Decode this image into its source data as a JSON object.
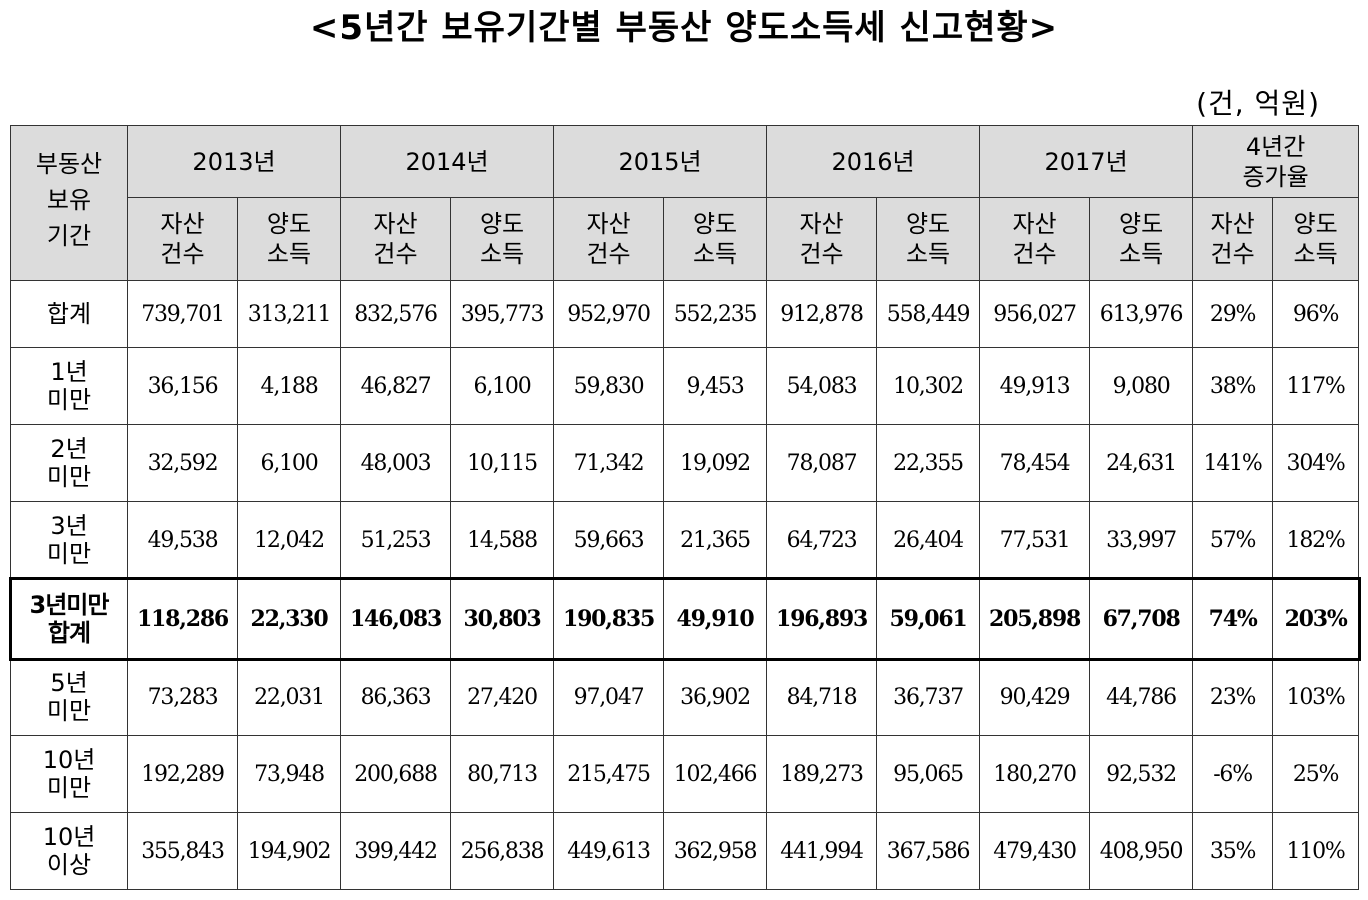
{
  "title": "<5년간 보유기간별 부동산 양도소득세 신고현황>",
  "unit": "(건, 억원)",
  "header": {
    "corner": [
      "부동산",
      "보유",
      "기간"
    ],
    "years": [
      "2013년",
      "2014년",
      "2015년",
      "2016년",
      "2017년"
    ],
    "growth": [
      "4년간",
      "증가율"
    ],
    "sub_count": [
      "자산",
      "건수"
    ],
    "sub_income": [
      "양도",
      "소득"
    ]
  },
  "rows": [
    {
      "label": [
        "합계"
      ],
      "values": [
        "739,701",
        "313,211",
        "832,576",
        "395,773",
        "952,970",
        "552,235",
        "912,878",
        "558,449",
        "956,027",
        "613,976",
        "29%",
        "96%"
      ]
    },
    {
      "label": [
        "1년",
        "미만"
      ],
      "values": [
        "36,156",
        "4,188",
        "46,827",
        "6,100",
        "59,830",
        "9,453",
        "54,083",
        "10,302",
        "49,913",
        "9,080",
        "38%",
        "117%"
      ]
    },
    {
      "label": [
        "2년",
        "미만"
      ],
      "values": [
        "32,592",
        "6,100",
        "48,003",
        "10,115",
        "71,342",
        "19,092",
        "78,087",
        "22,355",
        "78,454",
        "24,631",
        "141%",
        "304%"
      ]
    },
    {
      "label": [
        "3년",
        "미만"
      ],
      "values": [
        "49,538",
        "12,042",
        "51,253",
        "14,588",
        "59,663",
        "21,365",
        "64,723",
        "26,404",
        "77,531",
        "33,997",
        "57%",
        "182%"
      ]
    },
    {
      "label": [
        "3년미만",
        "합계"
      ],
      "emphasis": true,
      "values": [
        "118,286",
        "22,330",
        "146,083",
        "30,803",
        "190,835",
        "49,910",
        "196,893",
        "59,061",
        "205,898",
        "67,708",
        "74%",
        "203%"
      ]
    },
    {
      "label": [
        "5년",
        "미만"
      ],
      "values": [
        "73,283",
        "22,031",
        "86,363",
        "27,420",
        "97,047",
        "36,902",
        "84,718",
        "36,737",
        "90,429",
        "44,786",
        "23%",
        "103%"
      ]
    },
    {
      "label": [
        "10년",
        "미만"
      ],
      "values": [
        "192,289",
        "73,948",
        "200,688",
        "80,713",
        "215,475",
        "102,466",
        "189,273",
        "95,065",
        "180,270",
        "92,532",
        "-6%",
        "25%"
      ]
    },
    {
      "label": [
        "10년",
        "이상"
      ],
      "values": [
        "355,843",
        "194,902",
        "399,442",
        "256,838",
        "449,613",
        "362,958",
        "441,994",
        "367,586",
        "479,430",
        "408,950",
        "35%",
        "110%"
      ]
    }
  ]
}
